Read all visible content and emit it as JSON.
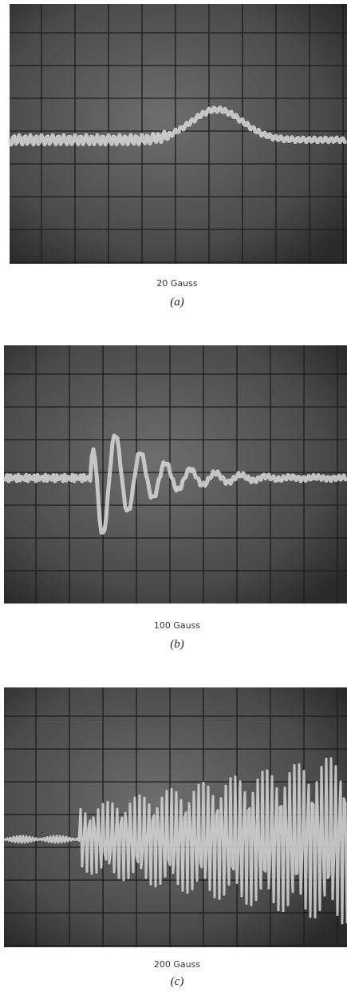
{
  "panels": [
    {
      "caption": "20 Gauss",
      "label": "(a)"
    },
    {
      "caption": "100 Gauss",
      "label": "(b)"
    },
    {
      "caption": "200 Gauss",
      "label": "(c)"
    }
  ]
}
